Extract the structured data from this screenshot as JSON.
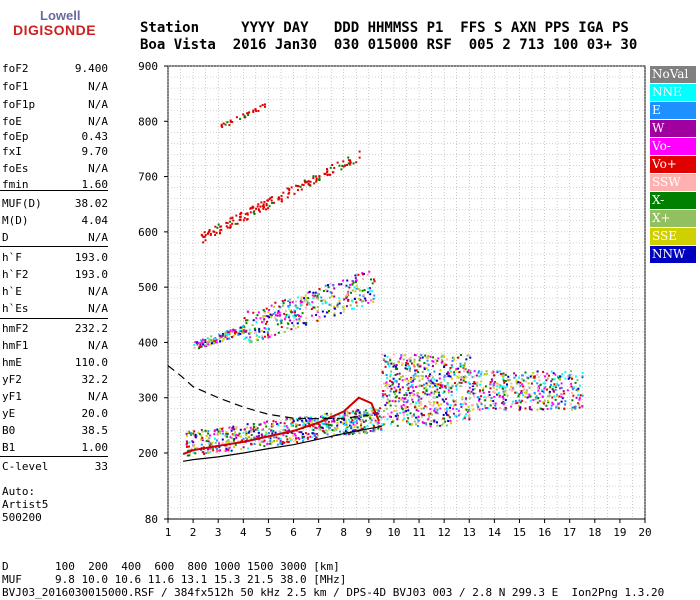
{
  "logo": {
    "line1": "Lowell",
    "line2": "DIGISONDE"
  },
  "header": {
    "row1": "Station     YYYY DAY   DDD HHMMSS P1  FFS S AXN PPS IGA PS",
    "row2": "Boa Vista  2016 Jan30  030 015000 RSF  005 2 713 100 03+ 30"
  },
  "params": [
    {
      "k": "foF2",
      "v": "9.400"
    },
    {
      "k": "foF1",
      "v": "N/A"
    },
    {
      "k": "foF1p",
      "v": "N/A"
    },
    {
      "k": "foE",
      "v": "N/A"
    },
    {
      "k": "foEp",
      "v": "0.43"
    },
    {
      "k": "fxI",
      "v": "9.70"
    },
    {
      "k": "foEs",
      "v": "N/A"
    },
    {
      "k": "fmin",
      "v": "1.60"
    },
    {
      "k": "MUF(D)",
      "v": "38.02"
    },
    {
      "k": "M(D)",
      "v": "4.04"
    },
    {
      "k": "D",
      "v": "N/A"
    },
    {
      "k": "h`F",
      "v": "193.0"
    },
    {
      "k": "h`F2",
      "v": "193.0"
    },
    {
      "k": "h`E",
      "v": "N/A"
    },
    {
      "k": "h`Es",
      "v": "N/A"
    },
    {
      "k": "hmF2",
      "v": "232.2"
    },
    {
      "k": "hmF1",
      "v": "N/A"
    },
    {
      "k": "hmE",
      "v": "110.0"
    },
    {
      "k": "yF2",
      "v": "32.2"
    },
    {
      "k": "yF1",
      "v": "N/A"
    },
    {
      "k": "yE",
      "v": "20.0"
    },
    {
      "k": "B0",
      "v": "38.5"
    },
    {
      "k": "B1",
      "v": "1.00"
    },
    {
      "k": "C-level",
      "v": "33"
    }
  ],
  "auto": {
    "l1": "Auto:",
    "l2": "Artist5",
    "l3": "500200"
  },
  "legend": [
    {
      "label": "NoVal",
      "color": "#808080"
    },
    {
      "label": "NNE",
      "color": "#00ffff"
    },
    {
      "label": "E",
      "color": "#1e90ff"
    },
    {
      "label": "W",
      "color": "#a000a0"
    },
    {
      "label": "Vo-",
      "color": "#ff00ff"
    },
    {
      "label": "Vo+",
      "color": "#e00000"
    },
    {
      "label": "SSW",
      "color": "#ffb0b0"
    },
    {
      "label": "X-",
      "color": "#008000"
    },
    {
      "label": "X+",
      "color": "#90c060"
    },
    {
      "label": "SSE",
      "color": "#d0d000"
    },
    {
      "label": "NNW",
      "color": "#0000c0"
    }
  ],
  "chart_data": {
    "type": "scatter",
    "xlim": [
      1,
      20
    ],
    "ylim": [
      80,
      900
    ],
    "x_ticks": [
      1,
      2,
      3,
      4,
      5,
      6,
      7,
      8,
      9,
      10,
      11,
      12,
      13,
      14,
      15,
      16,
      17,
      18,
      19,
      20
    ],
    "y_ticks": [
      80,
      200,
      300,
      400,
      500,
      600,
      700,
      800,
      900
    ],
    "grid": true,
    "legend_position": "right",
    "traces": [
      {
        "name": "O-trace profile",
        "color": "#cc0000",
        "points": [
          [
            1.6,
            198
          ],
          [
            2,
            205
          ],
          [
            3,
            213
          ],
          [
            4,
            220
          ],
          [
            5,
            230
          ],
          [
            6,
            240
          ],
          [
            7,
            255
          ],
          [
            8,
            275
          ],
          [
            8.6,
            300
          ],
          [
            9.1,
            290
          ],
          [
            9.4,
            258
          ]
        ]
      },
      {
        "name": "X-trace",
        "color": "#000000",
        "points": [
          [
            1.6,
            185
          ],
          [
            2,
            188
          ],
          [
            3,
            193
          ],
          [
            4,
            200
          ],
          [
            5,
            208
          ],
          [
            6,
            215
          ],
          [
            7,
            225
          ],
          [
            8,
            235
          ],
          [
            9,
            244
          ],
          [
            9.5,
            248
          ]
        ]
      },
      {
        "name": "dashed",
        "color": "#000000",
        "points": [
          [
            1,
            358
          ],
          [
            1.5,
            340
          ],
          [
            2,
            320
          ],
          [
            3,
            300
          ],
          [
            4,
            283
          ],
          [
            5,
            270
          ],
          [
            6,
            263
          ],
          [
            7,
            262
          ],
          [
            8,
            263
          ],
          [
            9,
            268
          ]
        ]
      }
    ],
    "echo_bands": [
      {
        "x": [
          1.7,
          9.5
        ],
        "y": [
          195,
          250
        ],
        "color": "mixed"
      },
      {
        "x": [
          2,
          9.2
        ],
        "y": [
          395,
          510
        ],
        "color": "mixed"
      },
      {
        "x": [
          2.3,
          8.6
        ],
        "y": [
          590,
          740
        ],
        "color": "red"
      },
      {
        "x": [
          3,
          5
        ],
        "y": [
          790,
          840
        ],
        "color": "red"
      },
      {
        "x": [
          9.5,
          13
        ],
        "y": [
          250,
          380
        ],
        "color": "mixed"
      },
      {
        "x": [
          13,
          17.5
        ],
        "y": [
          280,
          350
        ],
        "color": "mixed"
      }
    ]
  },
  "footer": {
    "d_row": "D       100  200  400  600  800 1000 1500 3000 [km]",
    "muf_row": "MUF     9.8 10.0 10.6 11.6 13.1 15.3 21.5 38.0 [MHz]",
    "info_row": "BVJ03_2016030015000.RSF / 384fx512h 50 kHz 2.5 km / DPS-4D BVJ03 003 / 2.8 N 299.3 E  Ion2Png 1.3.20"
  }
}
